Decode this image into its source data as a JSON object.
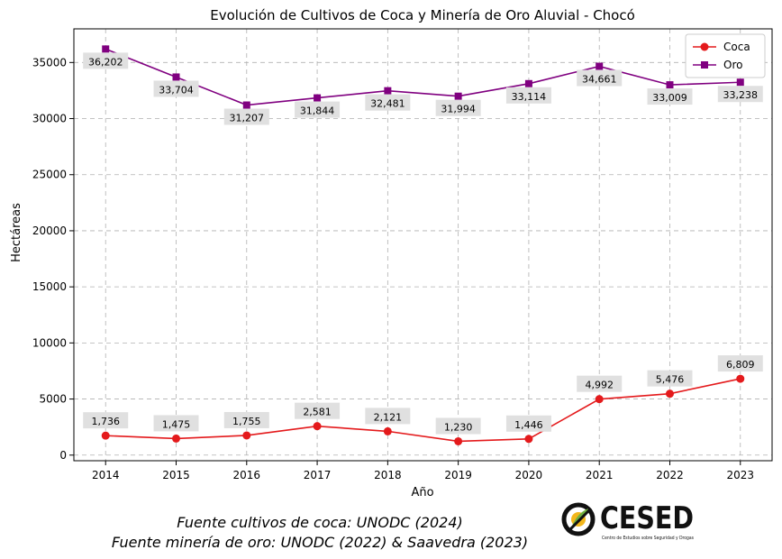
{
  "chart_data": {
    "type": "line",
    "title": "Evolución de Cultivos de Coca y Minería de Oro Aluvial - Chocó",
    "xlabel": "Año",
    "ylabel": "Hectáreas",
    "x": [
      2014,
      2015,
      2016,
      2017,
      2018,
      2019,
      2020,
      2021,
      2022,
      2023
    ],
    "xlim": [
      2013.55,
      2023.45
    ],
    "ylim": [
      -500,
      38000
    ],
    "yticks": [
      0,
      5000,
      10000,
      15000,
      20000,
      25000,
      30000,
      35000
    ],
    "grid": true,
    "legend_position": "top-right",
    "series": [
      {
        "name": "Coca",
        "color": "#e41a1c",
        "marker": "circle",
        "values": [
          1736,
          1475,
          1755,
          2581,
          2121,
          1230,
          1446,
          4992,
          5476,
          6809
        ],
        "labels": [
          "1,736",
          "1,475",
          "1,755",
          "2,581",
          "2,121",
          "1,230",
          "1,446",
          "4,992",
          "5,476",
          "6,809"
        ],
        "label_side": "above"
      },
      {
        "name": "Oro",
        "color": "#800080",
        "marker": "square",
        "values": [
          36202,
          33704,
          31207,
          31844,
          32481,
          31994,
          33114,
          34661,
          33009,
          33238
        ],
        "labels": [
          "36,202",
          "33,704",
          "31,207",
          "31,844",
          "32,481",
          "31,994",
          "33,114",
          "34,661",
          "33,009",
          "33,238"
        ],
        "label_side": "below"
      }
    ]
  },
  "sources": {
    "line1": "Fuente cultivos de coca: UNODC (2024)",
    "line2": "Fuente minería de oro: UNODC (2022) & Saavedra (2023)"
  },
  "logo": {
    "name": "CESED",
    "subtitle": "Centro de Estudios sobre Seguridad y Drogas"
  }
}
